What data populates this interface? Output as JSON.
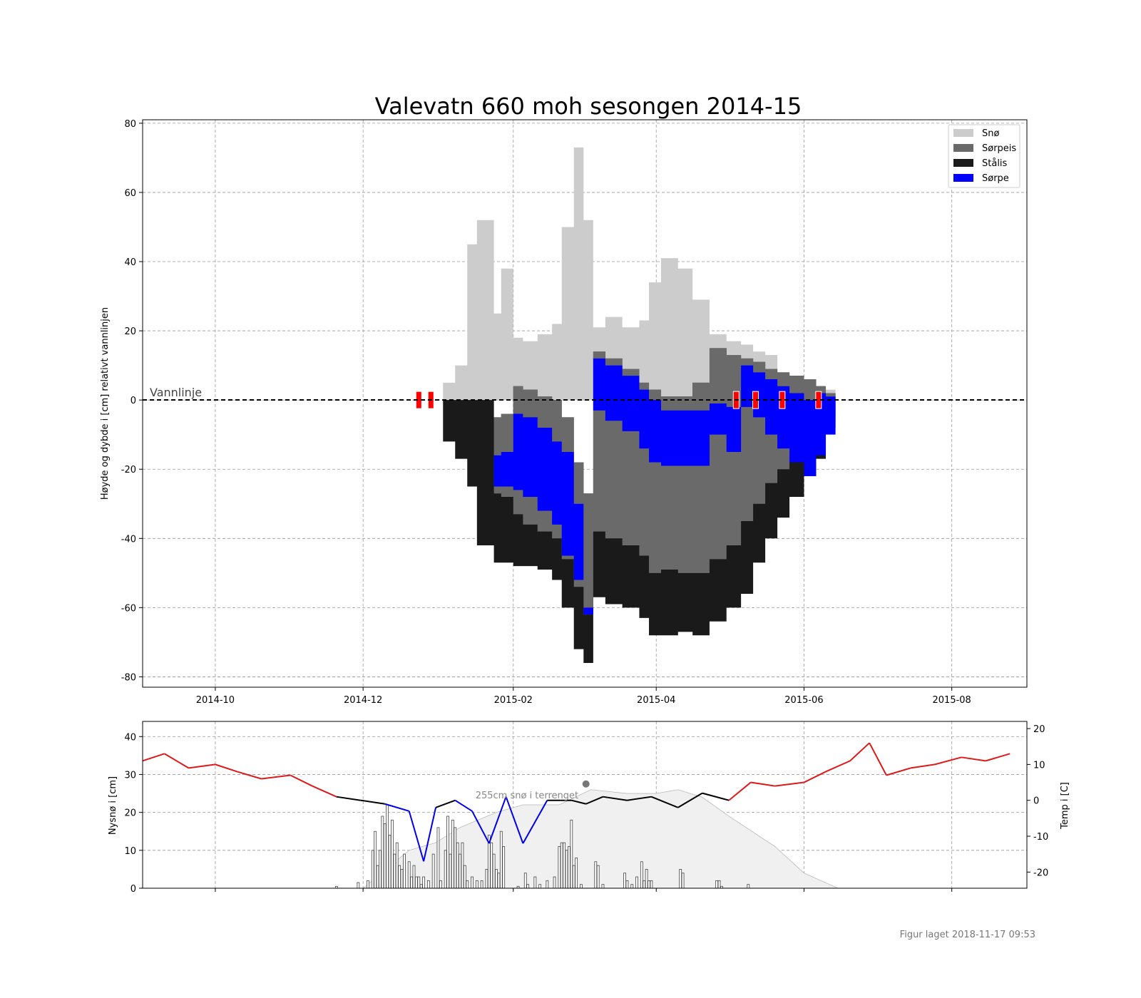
{
  "colors": {
    "snow": "#cccccc",
    "slush_ice": "#6a6a6a",
    "black_ice": "#1a1a1a",
    "slush": "#0000ff",
    "temp_warm": "#dd1a1a",
    "temp_cold": "#0000ee",
    "temp_mid": "#000000",
    "terrain_snow": "#f0f0f0",
    "marker_red": "#ff0000"
  },
  "chart_data": [
    {
      "type": "area",
      "title": "Valevatn 660 moh sesongen 2014-15",
      "ylabel": "Høyde og dybde i [cm] relativt vannlinjen",
      "xlabel": "",
      "xlim": [
        "2014-09-01",
        "2015-09-01"
      ],
      "ylim": [
        -83,
        81
      ],
      "x_ticks": [
        "2014-10",
        "2014-12",
        "2015-02",
        "2015-04",
        "2015-06",
        "2015-08"
      ],
      "y_ticks": [
        80,
        60,
        40,
        20,
        0,
        -20,
        -40,
        -60,
        -80
      ],
      "grid": true,
      "legend_position": "top-right",
      "legend": [
        "Snø",
        "Sørpeis",
        "Stålis",
        "Sørpe"
      ],
      "annotation": "Vannlinje",
      "series": {
        "dates": [
          "2014-12-27",
          "2015-01-03",
          "2015-01-08",
          "2015-01-13",
          "2015-01-17",
          "2015-01-24",
          "2015-01-27",
          "2015-02-01",
          "2015-02-05",
          "2015-02-11",
          "2015-02-17",
          "2015-02-21",
          "2015-02-26",
          "2015-03-02",
          "2015-03-06",
          "2015-03-11",
          "2015-03-18",
          "2015-03-25",
          "2015-03-29",
          "2015-04-03",
          "2015-04-10",
          "2015-04-16",
          "2015-04-23",
          "2015-04-30",
          "2015-05-06",
          "2015-05-11",
          "2015-05-16",
          "2015-05-21",
          "2015-05-26",
          "2015-06-01",
          "2015-06-06",
          "2015-06-10",
          "2015-06-14"
        ],
        "snow_top": [
          0,
          5,
          10,
          45,
          52,
          25,
          38,
          18,
          17,
          19,
          22,
          50,
          73,
          52,
          21,
          24,
          21,
          23,
          34,
          41,
          38,
          29,
          19,
          17,
          16,
          14,
          13,
          8,
          6,
          6,
          4,
          3,
          0
        ],
        "slush_ice_top": [
          0,
          0,
          0,
          0,
          0,
          -5,
          -4,
          4,
          3,
          1,
          0,
          -5,
          -18,
          -27,
          14,
          12,
          9,
          5,
          3,
          1,
          1,
          5,
          15,
          13,
          12,
          11,
          9,
          8,
          7,
          6,
          4,
          2,
          0
        ],
        "slush_top": [
          0,
          0,
          0,
          0,
          0,
          -16,
          -15,
          -4,
          -5,
          -8,
          -12,
          -15,
          -30,
          -60,
          12,
          10,
          7,
          3,
          0,
          -3,
          -3,
          -3,
          -1,
          -2,
          10,
          8,
          6,
          4,
          2,
          0,
          2,
          1,
          0
        ],
        "slush_bottom": [
          0,
          0,
          0,
          0,
          0,
          -25,
          -25,
          -26,
          -28,
          -32,
          -36,
          -45,
          -52,
          -62,
          -3,
          -6,
          -9,
          -14,
          -18,
          -19,
          -19,
          -19,
          -10,
          -15,
          -2,
          -5,
          -10,
          -14,
          -18,
          -22,
          -16,
          -10,
          0
        ],
        "slush_ice_bottom": [
          0,
          0,
          0,
          0,
          0,
          -27,
          -28,
          -33,
          -36,
          -38,
          -40,
          -46,
          -54,
          -62,
          -38,
          -40,
          -42,
          -45,
          -50,
          -49,
          -50,
          -50,
          -46,
          -42,
          -35,
          -30,
          -24,
          -20,
          -16,
          -13,
          -10,
          -5,
          0
        ],
        "black_ice_bottom": [
          0,
          -12,
          -17,
          -25,
          -42,
          -47,
          -47,
          -48,
          -48,
          -49,
          -52,
          -60,
          -72,
          -76,
          -57,
          -59,
          -60,
          -63,
          -68,
          -68,
          -67,
          -68,
          -64,
          -60,
          -56,
          -47,
          -40,
          -34,
          -28,
          -22,
          -17,
          -8,
          0
        ],
        "markers": [
          {
            "date": "2014-12-24",
            "value": 0
          },
          {
            "date": "2014-12-29",
            "value": 0
          },
          {
            "date": "2015-05-04",
            "value": 0
          },
          {
            "date": "2015-05-12",
            "value": 0
          },
          {
            "date": "2015-05-23",
            "value": 0
          },
          {
            "date": "2015-06-07",
            "value": 0
          }
        ]
      }
    },
    {
      "type": "bar",
      "ylabel": "Nysnø i [cm]",
      "y2label": "Temp i [C]",
      "ylim": [
        0,
        44
      ],
      "y2lim": [
        -24.5,
        22
      ],
      "y_ticks": [
        0,
        10,
        20,
        30,
        40
      ],
      "y2_ticks": [
        -20,
        -10,
        0,
        10,
        20
      ],
      "annotation": "255cm snø i terrenget",
      "annotation_point": {
        "date": "2015-03-03",
        "value": 27.5
      },
      "new_snow": {
        "dates": [
          "2014-11-20",
          "2014-11-29",
          "2014-12-03",
          "2014-12-05",
          "2014-12-06",
          "2014-12-07",
          "2014-12-08",
          "2014-12-09",
          "2014-12-10",
          "2014-12-11",
          "2014-12-12",
          "2014-12-13",
          "2014-12-14",
          "2014-12-15",
          "2014-12-16",
          "2014-12-17",
          "2014-12-18",
          "2014-12-20",
          "2014-12-21",
          "2014-12-22",
          "2014-12-23",
          "2014-12-24",
          "2014-12-25",
          "2014-12-26",
          "2014-12-28",
          "2014-12-30",
          "2015-01-01",
          "2015-01-02",
          "2015-01-04",
          "2015-01-05",
          "2015-01-06",
          "2015-01-07",
          "2015-01-08",
          "2015-01-09",
          "2015-01-10",
          "2015-01-11",
          "2015-01-12",
          "2015-01-13",
          "2015-01-15",
          "2015-01-17",
          "2015-01-19",
          "2015-01-21",
          "2015-01-22",
          "2015-01-23",
          "2015-01-24",
          "2015-01-25",
          "2015-01-26",
          "2015-01-27",
          "2015-01-28",
          "2015-02-03",
          "2015-02-06",
          "2015-02-07",
          "2015-02-10",
          "2015-02-12",
          "2015-02-15",
          "2015-02-18",
          "2015-02-20",
          "2015-02-21",
          "2015-02-22",
          "2015-02-23",
          "2015-02-24",
          "2015-02-25",
          "2015-02-26",
          "2015-02-27",
          "2015-03-01",
          "2015-03-07",
          "2015-03-08",
          "2015-03-10",
          "2015-03-19",
          "2015-03-20",
          "2015-03-22",
          "2015-03-24",
          "2015-03-26",
          "2015-03-27",
          "2015-03-28",
          "2015-03-29",
          "2015-03-30",
          "2015-04-11",
          "2015-04-12",
          "2015-04-26",
          "2015-04-27",
          "2015-04-28",
          "2015-05-09"
        ],
        "values": [
          0.5,
          1.5,
          2,
          10,
          15,
          6,
          10,
          19,
          17,
          22,
          14,
          18,
          9,
          12,
          6,
          5,
          9,
          7,
          3,
          6,
          3,
          3,
          1,
          3,
          2,
          9,
          16,
          2,
          10,
          19,
          9,
          18,
          16,
          12,
          9,
          12,
          6,
          2,
          3,
          2,
          2,
          5,
          14,
          12,
          9,
          5,
          4,
          15,
          11,
          0.5,
          4,
          1,
          3,
          1,
          2,
          3,
          11,
          12,
          12,
          10,
          11,
          18,
          6,
          8,
          1,
          7,
          6,
          1,
          4,
          2,
          1,
          3,
          7,
          2,
          5,
          2,
          2,
          5,
          4,
          2,
          2,
          0.5,
          1
        ],
        "terrain_snow_dates": [
          "2014-12-01",
          "2014-12-20",
          "2014-12-31",
          "2015-01-10",
          "2015-01-25",
          "2015-02-05",
          "2015-02-20",
          "2015-03-05",
          "2015-03-20",
          "2015-04-01",
          "2015-04-10",
          "2015-04-20",
          "2015-05-01",
          "2015-05-20",
          "2015-06-01",
          "2015-06-15",
          "2015-06-30"
        ],
        "terrain_snow_values": [
          0,
          10,
          12,
          16,
          20,
          22,
          22,
          26,
          25,
          25,
          26,
          24,
          19,
          11,
          4,
          0,
          0
        ]
      },
      "temperature": {
        "dates": [
          "2014-09-01",
          "2014-09-10",
          "2014-09-20",
          "2014-10-01",
          "2014-10-10",
          "2014-10-20",
          "2014-11-01",
          "2014-11-10",
          "2014-11-20",
          "2014-11-30",
          "2014-12-10",
          "2014-12-20",
          "2014-12-26",
          "2014-12-31",
          "2015-01-08",
          "2015-01-15",
          "2015-01-22",
          "2015-01-29",
          "2015-02-05",
          "2015-02-15",
          "2015-02-25",
          "2015-03-03",
          "2015-03-10",
          "2015-03-20",
          "2015-03-30",
          "2015-04-10",
          "2015-04-20",
          "2015-05-01",
          "2015-05-10",
          "2015-05-20",
          "2015-06-01",
          "2015-06-10",
          "2015-06-20",
          "2015-06-28",
          "2015-07-05",
          "2015-07-15",
          "2015-07-25",
          "2015-08-05",
          "2015-08-15",
          "2015-08-25"
        ],
        "values": [
          11,
          13,
          9,
          10,
          8,
          6,
          7,
          4,
          1,
          0,
          -1,
          -3,
          -17,
          -2,
          0,
          -3,
          -12,
          1,
          -12,
          0,
          0,
          -1,
          1,
          0,
          1,
          -2,
          2,
          0,
          5,
          4,
          5,
          8,
          11,
          16,
          7,
          9,
          10,
          12,
          11,
          13
        ]
      }
    }
  ],
  "footer": "Figur laget 2018-11-17 09:53"
}
